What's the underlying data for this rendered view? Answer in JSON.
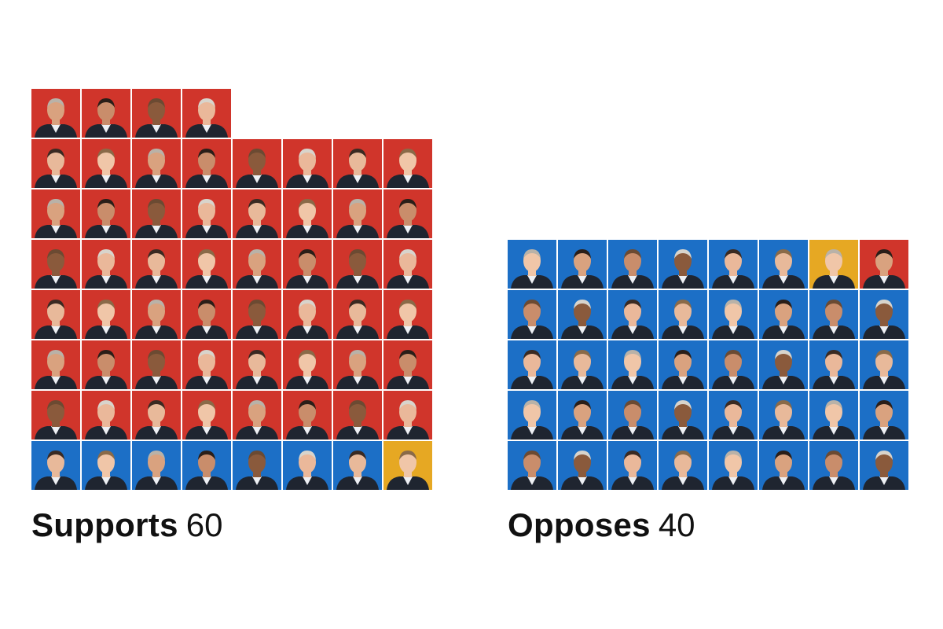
{
  "colors": {
    "R": "#d0352b",
    "D": "#1c6fc6",
    "I": "#e6a823"
  },
  "supports": {
    "title": "Supports",
    "count": "60",
    "tiles": [
      "R",
      "R",
      "R",
      "R",
      "R",
      "R",
      "R",
      "R",
      "R",
      "R",
      "R",
      "R",
      "R",
      "R",
      "R",
      "R",
      "R",
      "R",
      "R",
      "R",
      "R",
      "R",
      "R",
      "R",
      "R",
      "R",
      "R",
      "R",
      "R",
      "R",
      "R",
      "R",
      "R",
      "R",
      "R",
      "R",
      "R",
      "R",
      "R",
      "R",
      "R",
      "R",
      "R",
      "R",
      "R",
      "R",
      "R",
      "R",
      "R",
      "R",
      "R",
      "R",
      "D",
      "D",
      "D",
      "D",
      "D",
      "D",
      "D",
      "I"
    ]
  },
  "opposes": {
    "title": "Opposes",
    "count": "40",
    "tiles": [
      "D",
      "D",
      "D",
      "D",
      "D",
      "D",
      "I",
      "R",
      "D",
      "D",
      "D",
      "D",
      "D",
      "D",
      "D",
      "D",
      "D",
      "D",
      "D",
      "D",
      "D",
      "D",
      "D",
      "D",
      "D",
      "D",
      "D",
      "D",
      "D",
      "D",
      "D",
      "D",
      "D",
      "D",
      "D",
      "D",
      "D",
      "D",
      "D",
      "D"
    ]
  }
}
